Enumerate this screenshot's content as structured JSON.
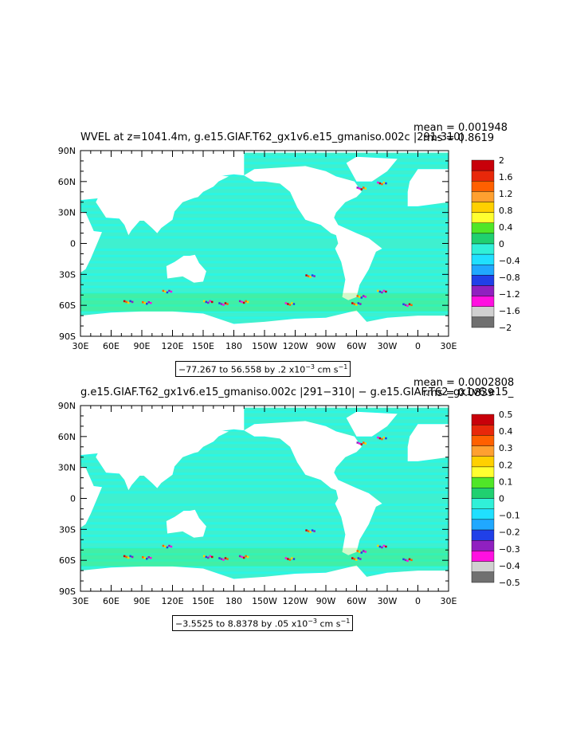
{
  "panels": [
    {
      "title": "WVEL at z=1041.4m, g.e15.GIAF.T62_gx1v6.e15_gmaniso.002c  |291-310|",
      "mean": "mean = 0.001948",
      "rms": "rms = 0.8619",
      "range_text": "−77.267 to 56.558 by .2 x10",
      "range_exp": "−3",
      "range_units": " cm s",
      "range_units_exp": "−1",
      "colorbar": [
        "2",
        "1.6",
        "1.2",
        "0.8",
        "0.4",
        "0",
        "−0.4",
        "−0.8",
        "−1.2",
        "−1.6",
        "−2"
      ]
    },
    {
      "title": "g.e15.GIAF.T62_gx1v6.e15_gmaniso.002c  |291−310|  −  g.e15.GIAF.T62_gx1v6.e15_",
      "mean": "mean = 0.0002808",
      "rms": "rms = 0.0839",
      "range_text": "−3.5525 to 8.8378 by .05 x10",
      "range_exp": "−3",
      "range_units": " cm s",
      "range_units_exp": "−1",
      "colorbar": [
        "0.5",
        "0.4",
        "0.3",
        "0.2",
        "0.1",
        "0",
        "−0.1",
        "−0.2",
        "−0.3",
        "−0.4",
        "−0.5"
      ]
    }
  ],
  "lat_labels": [
    "90N",
    "60N",
    "30N",
    "0",
    "30S",
    "60S",
    "90S"
  ],
  "lon_labels": [
    "30E",
    "60E",
    "90E",
    "120E",
    "150E",
    "180",
    "150W",
    "120W",
    "90W",
    "60W",
    "30W",
    "0",
    "30E"
  ],
  "colors": {
    "ocean_base": "#3ff0cf",
    "ocean_light": "#27f8e8",
    "land": "#ffffff",
    "colorbar": [
      "#c8000a",
      "#e8280a",
      "#ff6000",
      "#ffa030",
      "#ffd000",
      "#ffff30",
      "#50e628",
      "#20d070",
      "#30f0d8",
      "#20e0ff",
      "#20a8ff",
      "#2040e8",
      "#9020c0",
      "#ff10e0",
      "#d0d0d0",
      "#707070"
    ]
  }
}
